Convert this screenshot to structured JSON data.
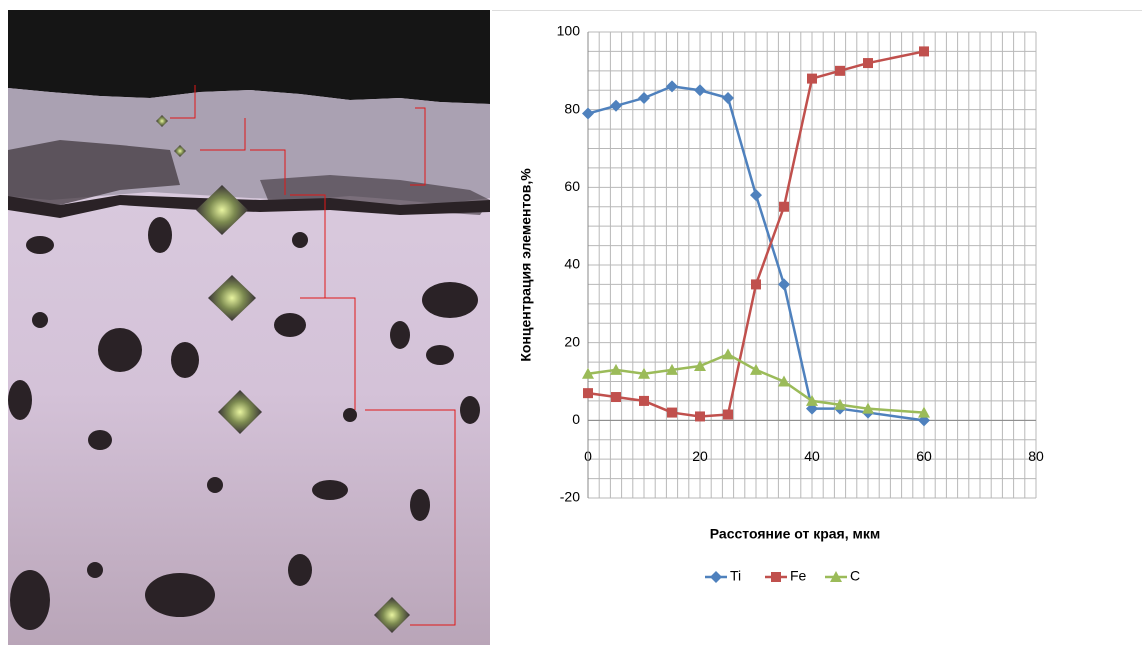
{
  "chart_data": {
    "type": "line",
    "ylabel": "Концентрация элементов,%",
    "xlabel": "Расстояние от края, мкм",
    "x": [
      0,
      5,
      10,
      15,
      20,
      25,
      30,
      35,
      40,
      45,
      50,
      60
    ],
    "series": [
      {
        "name": "Ti",
        "color": "#4f81bd",
        "marker": "diamond",
        "values": [
          79,
          81,
          83,
          86,
          85,
          83,
          58,
          35,
          3,
          3,
          2,
          0
        ]
      },
      {
        "name": "Fe",
        "color": "#c0504d",
        "marker": "square",
        "values": [
          7,
          6,
          5,
          2,
          1,
          1.5,
          35,
          55,
          88,
          90,
          92,
          95
        ]
      },
      {
        "name": "C",
        "color": "#9bbb59",
        "marker": "triangle",
        "values": [
          12,
          13,
          12,
          13,
          14,
          17,
          13,
          10,
          5,
          4,
          3,
          2
        ]
      }
    ],
    "xlim": [
      0,
      80
    ],
    "xticks": [
      0,
      20,
      40,
      60,
      80
    ],
    "ylim": [
      -20,
      100
    ],
    "yticks": [
      -20,
      0,
      20,
      40,
      60,
      80,
      100
    ],
    "grid": true,
    "legend": "bottom"
  }
}
